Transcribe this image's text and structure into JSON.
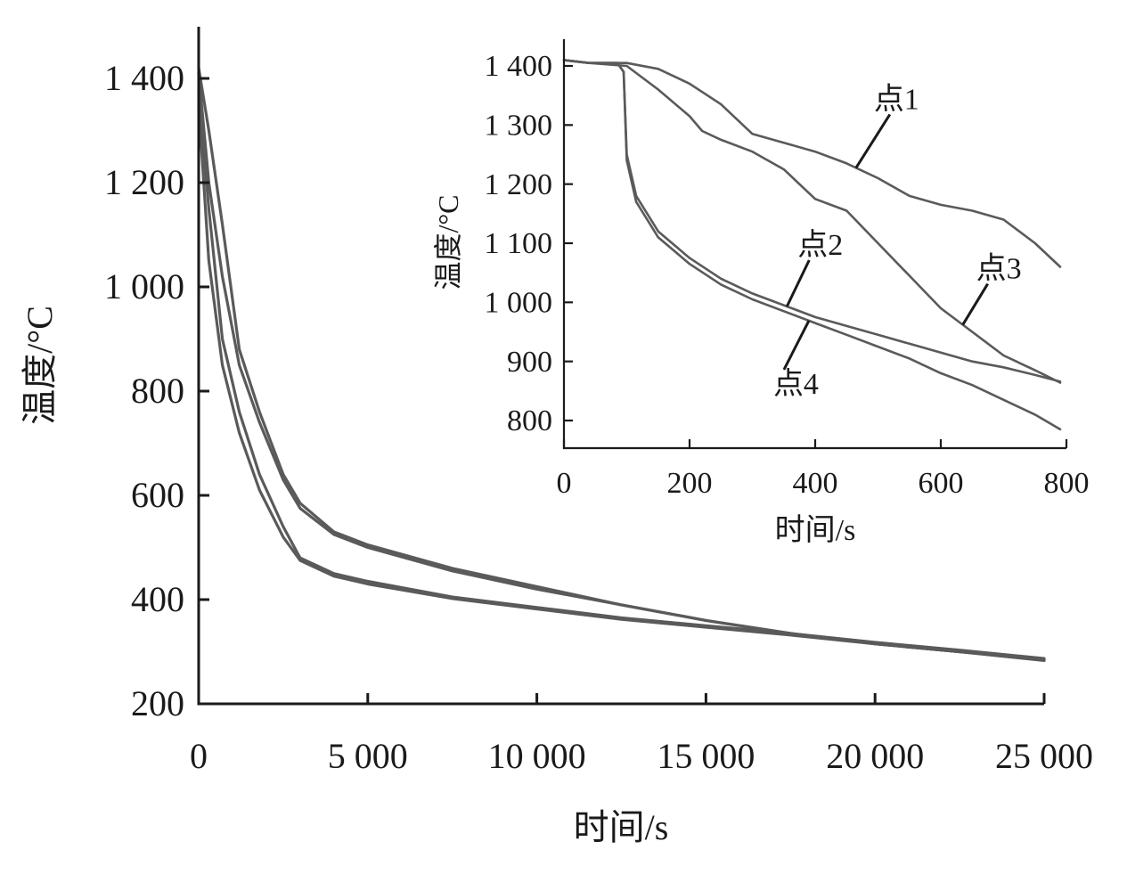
{
  "chart_data": [
    {
      "type": "line",
      "panel": "main",
      "xlabel": "时间/s",
      "ylabel": "温度/°C",
      "xlim": [
        0,
        25000
      ],
      "ylim": [
        200,
        1500
      ],
      "xticks": [
        0,
        5000,
        10000,
        15000,
        20000,
        25000
      ],
      "xtick_labels": [
        "0",
        "5 000",
        "10 000",
        "15 000",
        "20 000",
        "25 000"
      ],
      "yticks": [
        200,
        400,
        600,
        800,
        1000,
        1200,
        1400
      ],
      "ytick_labels": [
        "200",
        "400",
        "600",
        "800",
        "1 000",
        "1 200",
        "1 400"
      ],
      "series_color": "#5a5a5a",
      "series": [
        {
          "points": [
            [
              0,
              1420
            ],
            [
              300,
              1300
            ],
            [
              700,
              1120
            ],
            [
              1200,
              880
            ],
            [
              1800,
              760
            ],
            [
              2500,
              640
            ],
            [
              3000,
              585
            ],
            [
              4000,
              530
            ],
            [
              5000,
              505
            ],
            [
              7500,
              460
            ],
            [
              10000,
              425
            ],
            [
              12500,
              390
            ],
            [
              15000,
              360
            ],
            [
              17500,
              335
            ],
            [
              20000,
              315
            ],
            [
              22500,
              300
            ],
            [
              25000,
              285
            ]
          ]
        },
        {
          "points": [
            [
              0,
              1410
            ],
            [
              300,
              1200
            ],
            [
              700,
              1020
            ],
            [
              1200,
              850
            ],
            [
              1800,
              740
            ],
            [
              2500,
              630
            ],
            [
              3000,
              575
            ],
            [
              4000,
              525
            ],
            [
              5000,
              500
            ],
            [
              7500,
              455
            ],
            [
              10000,
              420
            ],
            [
              12500,
              390
            ],
            [
              15000,
              360
            ],
            [
              17500,
              335
            ],
            [
              20000,
              315
            ],
            [
              22500,
              300
            ],
            [
              25000,
              283
            ]
          ]
        },
        {
          "points": [
            [
              0,
              1380
            ],
            [
              300,
              1150
            ],
            [
              700,
              900
            ],
            [
              1200,
              760
            ],
            [
              1800,
              640
            ],
            [
              2500,
              540
            ],
            [
              3000,
              480
            ],
            [
              4000,
              450
            ],
            [
              5000,
              435
            ],
            [
              7500,
              405
            ],
            [
              10000,
              385
            ],
            [
              12500,
              365
            ],
            [
              15000,
              350
            ],
            [
              17500,
              335
            ],
            [
              20000,
              318
            ],
            [
              22500,
              303
            ],
            [
              25000,
              287
            ]
          ]
        },
        {
          "points": [
            [
              0,
              1350
            ],
            [
              300,
              1050
            ],
            [
              700,
              850
            ],
            [
              1200,
              720
            ],
            [
              1800,
              610
            ],
            [
              2500,
              520
            ],
            [
              3000,
              475
            ],
            [
              4000,
              445
            ],
            [
              5000,
              430
            ],
            [
              7500,
              402
            ],
            [
              10000,
              382
            ],
            [
              12500,
              362
            ],
            [
              15000,
              347
            ],
            [
              17500,
              332
            ],
            [
              20000,
              315
            ],
            [
              22500,
              300
            ],
            [
              25000,
              284
            ]
          ]
        }
      ]
    },
    {
      "type": "line",
      "panel": "inset",
      "xlabel": "时间/s",
      "ylabel": "温度/°C",
      "xlim": [
        0,
        800
      ],
      "ylim": [
        750,
        1450
      ],
      "xticks": [
        0,
        200,
        400,
        600,
        800
      ],
      "xtick_labels": [
        "0",
        "200",
        "400",
        "600",
        "800"
      ],
      "yticks": [
        800,
        900,
        1000,
        1100,
        1200,
        1300,
        1400
      ],
      "ytick_labels": [
        "800",
        "900",
        "1 000",
        "1 100",
        "1 200",
        "1 300",
        "1 400"
      ],
      "series_color": "#5a5a5a",
      "series": [
        {
          "name": "点1",
          "points": [
            [
              0,
              1410
            ],
            [
              40,
              1405
            ],
            [
              100,
              1405
            ],
            [
              150,
              1395
            ],
            [
              200,
              1370
            ],
            [
              250,
              1335
            ],
            [
              300,
              1285
            ],
            [
              350,
              1270
            ],
            [
              400,
              1255
            ],
            [
              450,
              1235
            ],
            [
              500,
              1210
            ],
            [
              550,
              1180
            ],
            [
              600,
              1165
            ],
            [
              650,
              1155
            ],
            [
              700,
              1140
            ],
            [
              750,
              1100
            ],
            [
              790,
              1060
            ]
          ]
        },
        {
          "name": "点2",
          "points": [
            [
              0,
              1410
            ],
            [
              40,
              1405
            ],
            [
              85,
              1405
            ],
            [
              95,
              1390
            ],
            [
              100,
              1250
            ],
            [
              115,
              1180
            ],
            [
              150,
              1120
            ],
            [
              200,
              1075
            ],
            [
              250,
              1040
            ],
            [
              300,
              1015
            ],
            [
              350,
              995
            ],
            [
              400,
              975
            ],
            [
              450,
              960
            ],
            [
              500,
              945
            ],
            [
              550,
              930
            ],
            [
              600,
              915
            ],
            [
              650,
              900
            ],
            [
              700,
              890
            ],
            [
              750,
              877
            ],
            [
              790,
              866
            ]
          ]
        },
        {
          "name": "点3",
          "points": [
            [
              0,
              1410
            ],
            [
              40,
              1405
            ],
            [
              100,
              1400
            ],
            [
              150,
              1360
            ],
            [
              200,
              1315
            ],
            [
              220,
              1290
            ],
            [
              250,
              1275
            ],
            [
              300,
              1255
            ],
            [
              350,
              1225
            ],
            [
              400,
              1175
            ],
            [
              450,
              1155
            ],
            [
              500,
              1100
            ],
            [
              550,
              1045
            ],
            [
              600,
              990
            ],
            [
              650,
              950
            ],
            [
              700,
              910
            ],
            [
              750,
              885
            ],
            [
              790,
              864
            ]
          ]
        },
        {
          "name": "点4",
          "points": [
            [
              0,
              1410
            ],
            [
              40,
              1405
            ],
            [
              85,
              1405
            ],
            [
              95,
              1390
            ],
            [
              100,
              1240
            ],
            [
              115,
              1170
            ],
            [
              150,
              1110
            ],
            [
              200,
              1065
            ],
            [
              250,
              1030
            ],
            [
              300,
              1005
            ],
            [
              350,
              985
            ],
            [
              400,
              965
            ],
            [
              450,
              945
            ],
            [
              500,
              925
            ],
            [
              550,
              905
            ],
            [
              600,
              880
            ],
            [
              650,
              860
            ],
            [
              700,
              835
            ],
            [
              750,
              810
            ],
            [
              790,
              785
            ]
          ]
        }
      ],
      "annotations": [
        {
          "text": "点1",
          "series": "点1",
          "at_x": 465
        },
        {
          "text": "点2",
          "series": "点2",
          "at_x": 355
        },
        {
          "text": "点3",
          "series": "点3",
          "at_x": 635
        },
        {
          "text": "点4",
          "series": "点4",
          "at_x": 390
        }
      ]
    }
  ]
}
